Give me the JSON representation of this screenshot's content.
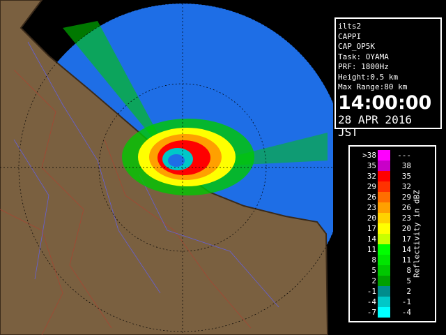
{
  "info": {
    "lines": [
      "ilts2",
      "CAPPI",
      "CAP_OP5K",
      "Task: OYAMA",
      "PRF: 1800Hz",
      "Height:0.5 km",
      "Max Range:80 km"
    ],
    "time": "14:00:00",
    "date": "28 APR 2016 JST"
  },
  "legend": {
    "title": "Reflectivity in dBZ",
    "rows": [
      {
        "low": ">38",
        "high": "---",
        "color": "#ff00ff"
      },
      {
        "low": "35",
        "high": "38",
        "color": "#c800c8"
      },
      {
        "low": "32",
        "high": "35",
        "color": "#ff0000"
      },
      {
        "low": "29",
        "high": "32",
        "color": "#ff3200"
      },
      {
        "low": "26",
        "high": "29",
        "color": "#ff6e00"
      },
      {
        "low": "23",
        "high": "26",
        "color": "#ffa000"
      },
      {
        "low": "20",
        "high": "23",
        "color": "#ffd200"
      },
      {
        "low": "17",
        "high": "20",
        "color": "#ffff00"
      },
      {
        "low": "14",
        "high": "17",
        "color": "#c8ff00"
      },
      {
        "low": "11",
        "high": "14",
        "color": "#00ff00"
      },
      {
        "low": "8",
        "high": "11",
        "color": "#00e600"
      },
      {
        "low": "5",
        "high": "8",
        "color": "#00c800"
      },
      {
        "low": "2",
        "high": "5",
        "color": "#00a000"
      },
      {
        "low": "-1",
        "high": "2",
        "color": "#008c8c"
      },
      {
        "low": "-4",
        "high": "-1",
        "color": "#00c8c8"
      },
      {
        "low": "-7",
        "high": "-4",
        "color": "#00ffff"
      }
    ]
  }
}
